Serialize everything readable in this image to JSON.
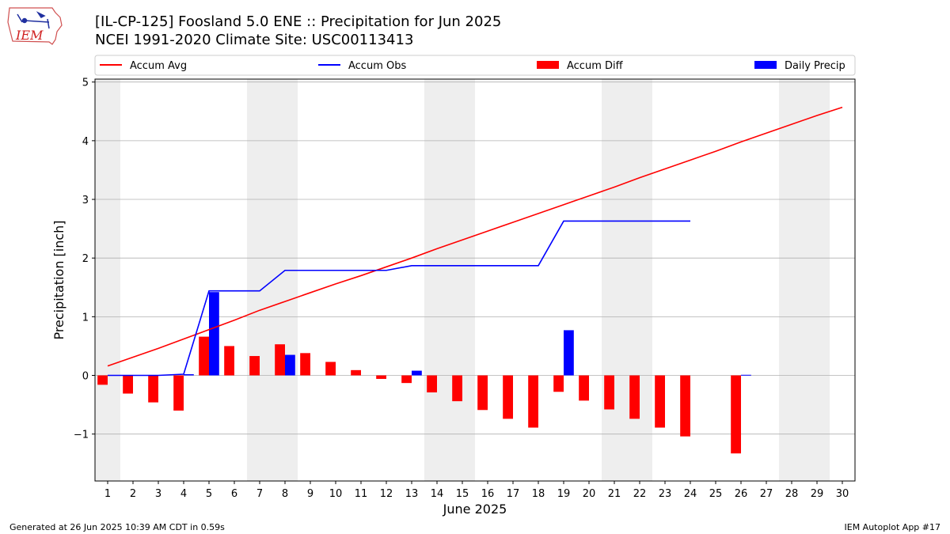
{
  "title": {
    "line1": "[IL-CP-125] Foosland 5.0 ENE :: Precipitation for Jun 2025",
    "line2": "NCEI 1991-2020 Climate Site: USC00113413"
  },
  "logo": {
    "text": "IEM"
  },
  "footer": {
    "left": "Generated at 26 Jun 2025 10:39 AM CDT in 0.59s",
    "right": "IEM Autoplot App #17"
  },
  "chart_data": {
    "type": "bar",
    "xlabel": "June 2025",
    "ylabel": "Precipitation [inch]",
    "xlim": [
      0.5,
      30.5
    ],
    "ylim": [
      -1.8,
      5.05
    ],
    "yticks": [
      -1,
      0,
      1,
      2,
      3,
      4,
      5
    ],
    "ytick_labels": [
      "−1",
      "0",
      "1",
      "2",
      "3",
      "4",
      "5"
    ],
    "days": [
      1,
      2,
      3,
      4,
      5,
      6,
      7,
      8,
      9,
      10,
      11,
      12,
      13,
      14,
      15,
      16,
      17,
      18,
      19,
      20,
      21,
      22,
      23,
      24,
      25,
      26,
      27,
      28,
      29,
      30
    ],
    "weekend_shading": [
      [
        0.5,
        1.5
      ],
      [
        6.5,
        8.5
      ],
      [
        13.5,
        15.5
      ],
      [
        20.5,
        22.5
      ],
      [
        27.5,
        29.5
      ]
    ],
    "grid": "y",
    "legend_position": "top",
    "series": [
      {
        "name": "Accum Avg",
        "kind": "line",
        "color": "#ff0000",
        "values": [
          0.16,
          0.31,
          0.46,
          0.62,
          0.78,
          0.94,
          1.11,
          1.26,
          1.41,
          1.56,
          1.7,
          1.85,
          2.0,
          2.16,
          2.31,
          2.46,
          2.61,
          2.76,
          2.91,
          3.06,
          3.21,
          3.37,
          3.52,
          3.67,
          3.82,
          3.98,
          4.13,
          4.28,
          4.43,
          4.57
        ]
      },
      {
        "name": "Accum Obs",
        "kind": "line",
        "color": "#0000ff",
        "values": [
          0.0,
          0.0,
          0.0,
          0.02,
          1.44,
          1.44,
          1.44,
          1.79,
          1.79,
          1.79,
          1.79,
          1.79,
          1.87,
          1.87,
          1.87,
          1.87,
          1.87,
          1.87,
          2.63,
          2.63,
          2.63,
          2.63,
          2.63,
          2.63,
          null,
          null,
          null,
          null,
          null,
          null
        ]
      },
      {
        "name": "Accum Diff",
        "kind": "bar",
        "color": "#ff0000",
        "values": [
          -0.16,
          -0.31,
          -0.46,
          -0.6,
          0.66,
          0.5,
          0.33,
          0.53,
          0.38,
          0.23,
          0.09,
          -0.06,
          -0.13,
          -0.29,
          -0.44,
          -0.59,
          -0.74,
          -0.89,
          -0.28,
          -0.43,
          -0.58,
          -0.74,
          -0.89,
          -1.04,
          null,
          -1.33,
          null,
          null,
          null,
          null
        ]
      },
      {
        "name": "Daily Precip",
        "kind": "bar",
        "color": "#0000ff",
        "values": [
          0,
          0,
          0,
          0.02,
          1.42,
          0,
          0,
          0.35,
          0,
          0,
          0,
          0,
          0.08,
          0,
          0,
          0,
          0,
          0,
          0.77,
          0,
          0,
          0,
          0,
          0,
          0,
          0.01,
          0,
          0,
          0,
          0
        ]
      }
    ]
  }
}
